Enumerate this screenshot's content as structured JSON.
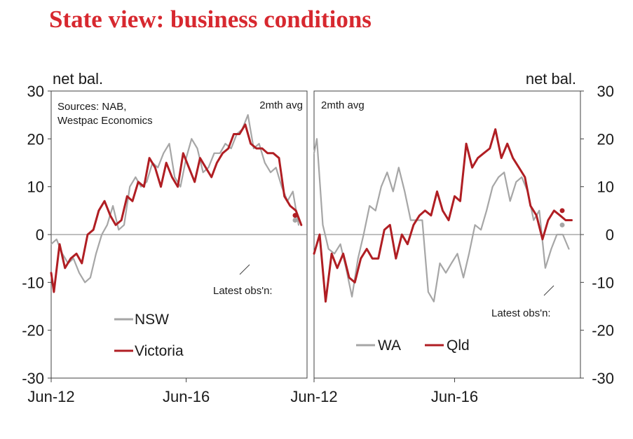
{
  "title": "State view: business conditions",
  "colors": {
    "title": "#d7282f",
    "grey": "#a6a6a6",
    "red": "#b01e23",
    "axis": "#404040"
  },
  "chart_data": [
    {
      "type": "line",
      "panel": "left",
      "unit_label": "net bal.",
      "avg_note": "2mth avg",
      "source_note": [
        "Sources: NAB,",
        "Westpac Economics"
      ],
      "latest_label": "Latest obs'n:",
      "ylim": [
        -30,
        30
      ],
      "yticks": [
        "30",
        "20",
        "10",
        "0",
        "-10",
        "-20",
        "-30"
      ],
      "xlim": [
        2012.42,
        2020.0
      ],
      "xticks": [
        {
          "x": 2012.42,
          "label": "Jun-12"
        },
        {
          "x": 2016.42,
          "label": "Jun-16"
        }
      ],
      "series": [
        {
          "name": "NSW",
          "color": "#a6a6a6",
          "x": [
            2012.42,
            2012.58,
            2012.75,
            2012.92,
            2013.08,
            2013.25,
            2013.42,
            2013.58,
            2013.75,
            2013.92,
            2014.08,
            2014.25,
            2014.42,
            2014.58,
            2014.75,
            2014.92,
            2015.08,
            2015.25,
            2015.42,
            2015.58,
            2015.75,
            2015.92,
            2016.08,
            2016.25,
            2016.42,
            2016.58,
            2016.75,
            2016.92,
            2017.08,
            2017.25,
            2017.42,
            2017.58,
            2017.75,
            2017.92,
            2018.08,
            2018.25,
            2018.42,
            2018.58,
            2018.75,
            2018.92,
            2019.08,
            2019.25,
            2019.42,
            2019.58,
            2019.75
          ],
          "y": [
            -2,
            -1,
            -4,
            -6,
            -5,
            -8,
            -10,
            -9,
            -4,
            0,
            2,
            6,
            1,
            2,
            10,
            12,
            10,
            11,
            15,
            14,
            17,
            19,
            12,
            10,
            16,
            20,
            18,
            13,
            14,
            17,
            17,
            19,
            18,
            21,
            22,
            25,
            18,
            19,
            15,
            13,
            14,
            10,
            7,
            9,
            2
          ],
          "latest": 3
        },
        {
          "name": "Victoria",
          "color": "#b01e23",
          "x": [
            2012.42,
            2012.5,
            2012.67,
            2012.83,
            2013.0,
            2013.17,
            2013.33,
            2013.5,
            2013.67,
            2013.83,
            2014.0,
            2014.17,
            2014.33,
            2014.5,
            2014.67,
            2014.83,
            2015.0,
            2015.17,
            2015.33,
            2015.5,
            2015.67,
            2015.83,
            2016.0,
            2016.17,
            2016.33,
            2016.5,
            2016.67,
            2016.83,
            2017.0,
            2017.17,
            2017.33,
            2017.5,
            2017.67,
            2017.83,
            2018.0,
            2018.17,
            2018.33,
            2018.5,
            2018.67,
            2018.83,
            2019.0,
            2019.17,
            2019.33,
            2019.5,
            2019.67,
            2019.83
          ],
          "y": [
            -8,
            -12,
            -2,
            -7,
            -5,
            -4,
            -6,
            0,
            1,
            5,
            7,
            4,
            2,
            3,
            8,
            7,
            11,
            10,
            16,
            14,
            10,
            15,
            12,
            10,
            17,
            14,
            11,
            16,
            14,
            12,
            15,
            17,
            18,
            21,
            21,
            23,
            19,
            18,
            18,
            17,
            17,
            16,
            8,
            6,
            5,
            2
          ],
          "latest": 4
        }
      ],
      "legend": [
        {
          "name": "NSW",
          "color": "#a6a6a6"
        },
        {
          "name": "Victoria",
          "color": "#b01e23"
        }
      ]
    },
    {
      "type": "line",
      "panel": "right",
      "unit_label": "net bal.",
      "avg_note": "2mth avg",
      "latest_label": "Latest obs'n:",
      "ylim": [
        -30,
        30
      ],
      "yticks": [
        "30",
        "20",
        "10",
        "0",
        "-10",
        "-20",
        "-30"
      ],
      "xlim": [
        2012.42,
        2020.0
      ],
      "xticks": [
        {
          "x": 2012.42,
          "label": "Jun-12"
        },
        {
          "x": 2016.42,
          "label": "Jun-16"
        }
      ],
      "series": [
        {
          "name": "WA",
          "color": "#a6a6a6",
          "x": [
            2012.42,
            2012.5,
            2012.67,
            2012.83,
            2013.0,
            2013.17,
            2013.33,
            2013.5,
            2013.67,
            2013.83,
            2014.0,
            2014.17,
            2014.33,
            2014.5,
            2014.67,
            2014.83,
            2015.0,
            2015.17,
            2015.33,
            2015.5,
            2015.67,
            2015.83,
            2016.0,
            2016.17,
            2016.33,
            2016.5,
            2016.67,
            2016.83,
            2017.0,
            2017.17,
            2017.33,
            2017.5,
            2017.67,
            2017.83,
            2018.0,
            2018.17,
            2018.33,
            2018.5,
            2018.67,
            2018.83,
            2019.0,
            2019.17,
            2019.33,
            2019.5,
            2019.67
          ],
          "y": [
            17,
            20,
            2,
            -3,
            -4,
            -2,
            -7,
            -13,
            -5,
            0,
            6,
            5,
            10,
            13,
            9,
            14,
            9,
            3,
            3,
            3,
            -12,
            -14,
            -6,
            -8,
            -6,
            -4,
            -9,
            -4,
            2,
            1,
            5,
            10,
            12,
            13,
            7,
            11,
            12,
            9,
            3,
            5,
            -7,
            -3,
            0,
            0,
            -3
          ],
          "latest": 2
        },
        {
          "name": "Qld",
          "color": "#b01e23",
          "x": [
            2012.42,
            2012.58,
            2012.75,
            2012.92,
            2013.08,
            2013.25,
            2013.42,
            2013.58,
            2013.75,
            2013.92,
            2014.08,
            2014.25,
            2014.42,
            2014.58,
            2014.75,
            2014.92,
            2015.08,
            2015.25,
            2015.42,
            2015.58,
            2015.75,
            2015.92,
            2016.08,
            2016.25,
            2016.42,
            2016.58,
            2016.75,
            2016.92,
            2017.08,
            2017.25,
            2017.42,
            2017.58,
            2017.75,
            2017.92,
            2018.08,
            2018.25,
            2018.42,
            2018.58,
            2018.75,
            2018.92,
            2019.08,
            2019.25,
            2019.42,
            2019.58,
            2019.75
          ],
          "y": [
            -4,
            0,
            -14,
            -4,
            -7,
            -4,
            -9,
            -10,
            -5,
            -3,
            -5,
            -5,
            1,
            2,
            -5,
            0,
            -2,
            2,
            4,
            5,
            4,
            9,
            5,
            3,
            8,
            7,
            19,
            14,
            16,
            17,
            18,
            22,
            16,
            19,
            16,
            14,
            12,
            6,
            4,
            -1,
            3,
            5,
            4,
            3,
            3
          ],
          "latest": 5
        }
      ],
      "legend": [
        {
          "name": "WA",
          "color": "#a6a6a6"
        },
        {
          "name": "Qld",
          "color": "#b01e23"
        }
      ]
    }
  ]
}
